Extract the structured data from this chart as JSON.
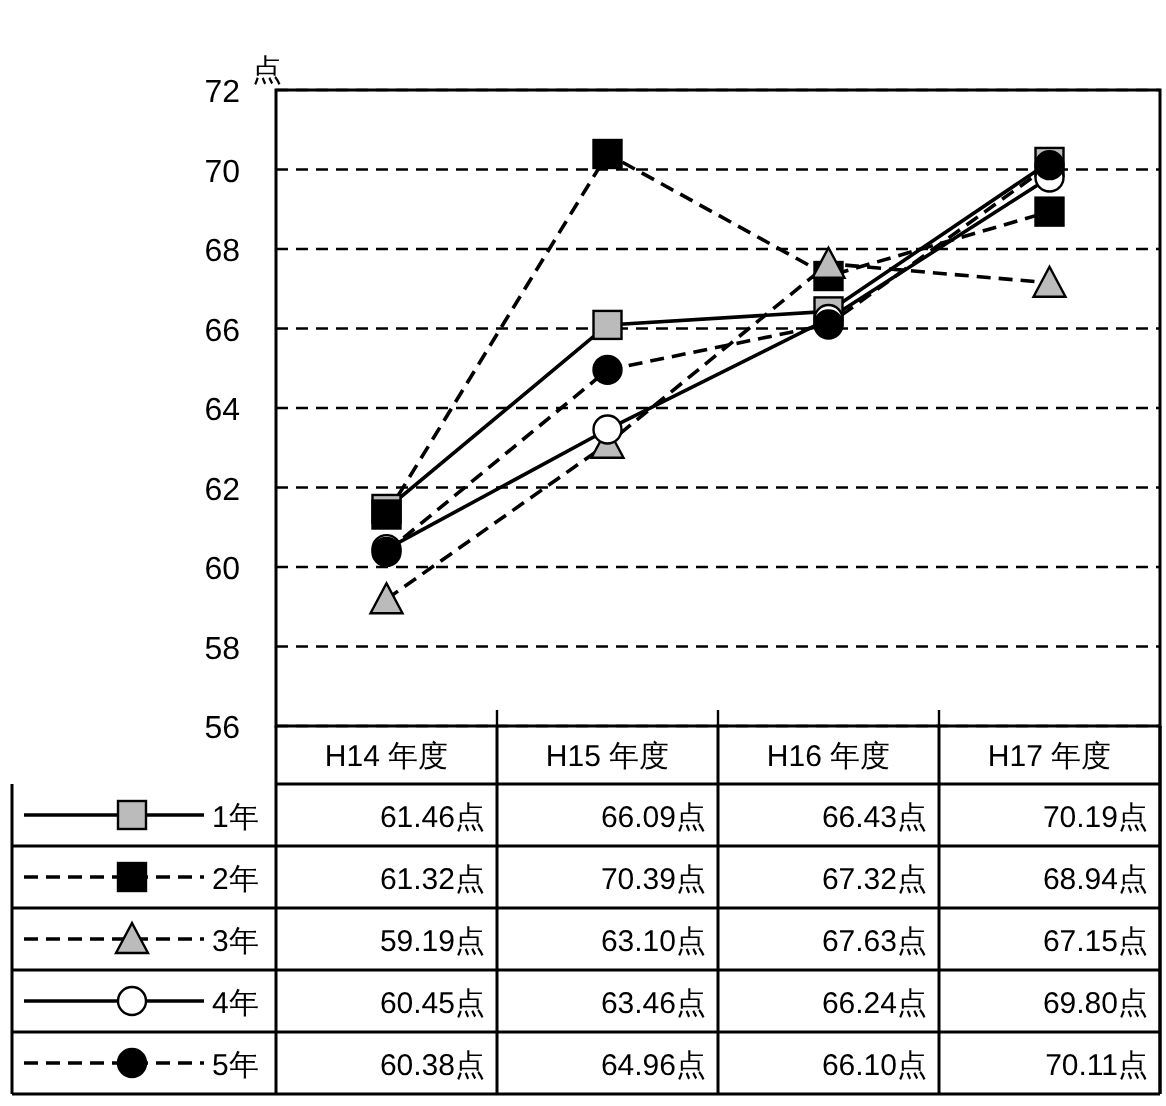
{
  "chart_data": {
    "type": "line",
    "ylabel": "点",
    "categories": [
      "H14 年度",
      "H15 年度",
      "H16 年度",
      "H17 年度"
    ],
    "ylim": [
      56,
      72
    ],
    "yticks": [
      56,
      58,
      60,
      62,
      64,
      66,
      68,
      70,
      72
    ],
    "grid": "y",
    "legend": "bottom left",
    "series": [
      {
        "name": "1年",
        "color": "#bbbbbb",
        "marker": "square",
        "line_style": "solid",
        "values": [
          61.46,
          66.09,
          66.43,
          70.19
        ],
        "value_labels": [
          "61.46点",
          "66.09点",
          "66.43点",
          "70.19点"
        ]
      },
      {
        "name": "2年",
        "color": "#000000",
        "marker": "square",
        "line_style": "dashed",
        "values": [
          61.32,
          70.39,
          67.32,
          68.94
        ],
        "value_labels": [
          "61.32点",
          "70.39点",
          "67.32点",
          "68.94点"
        ]
      },
      {
        "name": "3年",
        "color": "#bbbbbb",
        "marker": "triangle",
        "line_style": "dashed",
        "values": [
          59.19,
          63.1,
          67.63,
          67.15
        ],
        "value_labels": [
          "59.19点",
          "63.10点",
          "67.63点",
          "67.15点"
        ]
      },
      {
        "name": "4年",
        "color": "#ffffff",
        "marker": "circle",
        "line_style": "solid",
        "values": [
          60.45,
          63.46,
          66.24,
          69.8
        ],
        "value_labels": [
          "60.45点",
          "63.46点",
          "66.24点",
          "69.80点"
        ]
      },
      {
        "name": "5年",
        "color": "#000000",
        "marker": "circle",
        "line_style": "dashed",
        "values": [
          60.38,
          64.96,
          66.1,
          70.11
        ],
        "value_labels": [
          "60.38点",
          "64.96点",
          "66.10点",
          "70.11点"
        ]
      }
    ]
  }
}
